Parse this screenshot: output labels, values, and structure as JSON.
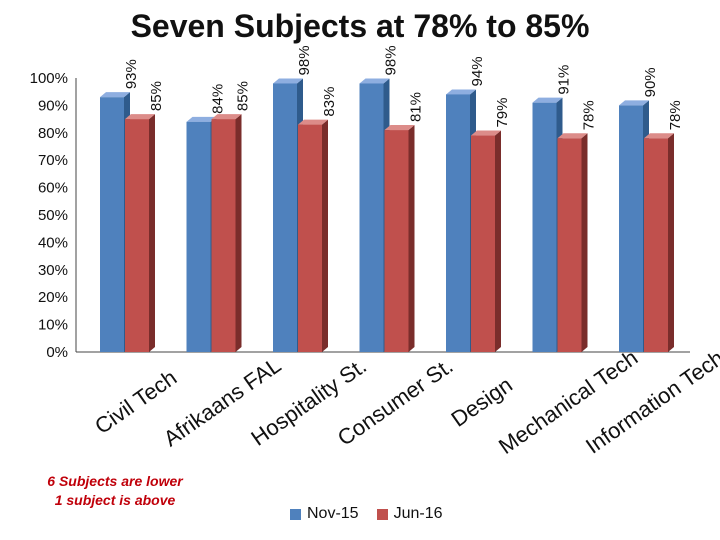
{
  "chart_data": {
    "type": "bar",
    "title": "Seven Subjects at 78% to 85%",
    "categories": [
      "Civil Tech",
      "Afrikaans FAL",
      "Hospitality St.",
      "Consumer St.",
      "Design",
      "Mechanical Tech",
      "Information Tech"
    ],
    "series": [
      {
        "name": "Nov-15",
        "values": [
          93,
          84,
          98,
          98,
          94,
          91,
          90
        ],
        "labels": [
          "93%",
          "84%",
          "98%",
          "98%",
          "94%",
          "91%",
          "90%"
        ]
      },
      {
        "name": "Jun-16",
        "values": [
          85,
          85,
          83,
          81,
          79,
          78,
          78
        ],
        "labels": [
          "85%",
          "85%",
          "83%",
          "81%",
          "79%",
          "78%",
          "78%"
        ]
      }
    ],
    "ylim": [
      0,
      100
    ],
    "yticks": [
      "0%",
      "10%",
      "20%",
      "30%",
      "40%",
      "50%",
      "60%",
      "70%",
      "80%",
      "90%",
      "100%"
    ],
    "legend_position": "bottom",
    "grid": false
  },
  "note": {
    "line1": "6 Subjects are lower",
    "line2": "1 subject is above"
  },
  "colors": {
    "Nov-15": "#4f81bd",
    "Jun-16": "#c0504d"
  }
}
